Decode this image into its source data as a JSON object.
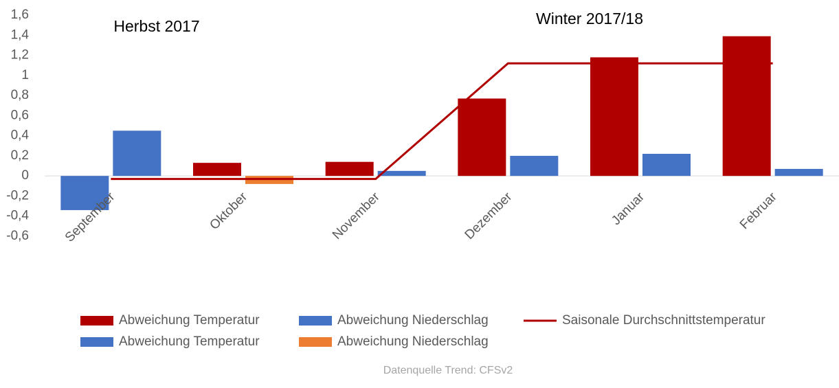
{
  "chart_data": {
    "type": "bar",
    "categories": [
      "September",
      "Oktober",
      "November",
      "Dezember",
      "Januar",
      "Februar"
    ],
    "series": [
      {
        "name": "Abweichung Temperatur",
        "color": "#b00000",
        "values": [
          null,
          0.13,
          0.14,
          0.77,
          1.18,
          1.39
        ]
      },
      {
        "name": "Abweichung Niederschlag",
        "color": "#4472c4",
        "values": [
          0.45,
          null,
          0.05,
          0.2,
          0.22,
          0.07
        ]
      },
      {
        "name": "Saisonale Durchschnittstemperatur",
        "type": "line",
        "color": "#b00000",
        "values": [
          -0.03,
          -0.03,
          -0.03,
          1.12,
          1.12,
          1.12
        ]
      },
      {
        "name": "Abweichung Temperatur",
        "color": "#4472c4",
        "values": [
          -0.34,
          null,
          null,
          null,
          null,
          null
        ]
      },
      {
        "name": "Abweichung Niederschlag",
        "color": "#ed7d31",
        "values": [
          null,
          -0.08,
          null,
          null,
          null,
          null
        ]
      }
    ],
    "ylim": [
      -0.6,
      1.6
    ],
    "yticks": [
      {
        "value": -0.6,
        "label": "-0,6"
      },
      {
        "value": -0.4,
        "label": "-0,4"
      },
      {
        "value": -0.2,
        "label": "-0,2"
      },
      0,
      {
        "value": 0.2,
        "label": "0,2"
      },
      {
        "value": 0.4,
        "label": "0,4"
      },
      {
        "value": 0.6,
        "label": "0,6"
      },
      {
        "value": 0.8,
        "label": "0,8"
      },
      1,
      {
        "value": 1.2,
        "label": "1,2"
      },
      {
        "value": 1.4,
        "label": "1,4"
      },
      {
        "value": 1.6,
        "label": "1,6"
      }
    ],
    "grid": false,
    "annotations": [
      "Herbst 2017",
      "Winter 2017/18"
    ],
    "source": "Datenquelle Trend: CFSv2"
  }
}
